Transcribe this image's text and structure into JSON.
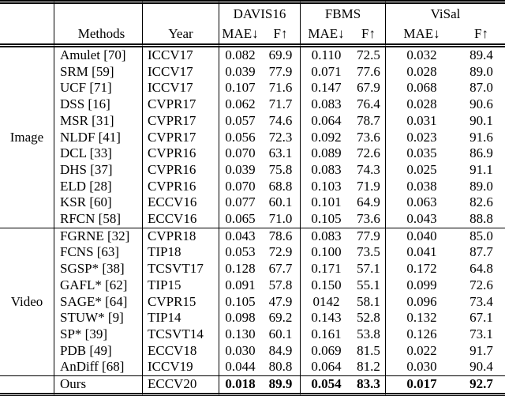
{
  "colors": {
    "background": "#ffffff",
    "text": "#000000",
    "rule": "#000000"
  },
  "table": {
    "datasets": [
      "DAVIS16",
      "FBMS",
      "ViSal"
    ],
    "header": {
      "methods": "Methods",
      "year": "Year",
      "mae": "MAE↓",
      "f": "F↑"
    },
    "sections": [
      {
        "group": "Image",
        "rule_above": false,
        "bold_values": false,
        "rows": [
          [
            "Amulet [70]",
            "ICCV17",
            "0.082",
            "69.9",
            "0.110",
            "72.5",
            "0.032",
            "89.4"
          ],
          [
            "SRM [59]",
            "ICCV17",
            "0.039",
            "77.9",
            "0.071",
            "77.6",
            "0.028",
            "89.0"
          ],
          [
            "UCF [71]",
            "ICCV17",
            "0.107",
            "71.6",
            "0.147",
            "67.9",
            "0.068",
            "87.0"
          ],
          [
            "DSS [16]",
            "CVPR17",
            "0.062",
            "71.7",
            "0.083",
            "76.4",
            "0.028",
            "90.6"
          ],
          [
            "MSR [31]",
            "CVPR17",
            "0.057",
            "74.6",
            "0.064",
            "78.7",
            "0.031",
            "90.1"
          ],
          [
            "NLDF [41]",
            "CVPR17",
            "0.056",
            "72.3",
            "0.092",
            "73.6",
            "0.023",
            "91.6"
          ],
          [
            "DCL [33]",
            "CVPR16",
            "0.070",
            "63.1",
            "0.089",
            "72.6",
            "0.035",
            "86.9"
          ],
          [
            "DHS [37]",
            "CVPR16",
            "0.039",
            "75.8",
            "0.083",
            "74.3",
            "0.025",
            "91.1"
          ],
          [
            "ELD [28]",
            "CVPR16",
            "0.070",
            "68.8",
            "0.103",
            "71.9",
            "0.038",
            "89.0"
          ],
          [
            "KSR [60]",
            "ECCV16",
            "0.077",
            "60.1",
            "0.101",
            "64.9",
            "0.063",
            "82.6"
          ],
          [
            "RFCN [58]",
            "ECCV16",
            "0.065",
            "71.0",
            "0.105",
            "73.6",
            "0.043",
            "88.8"
          ]
        ]
      },
      {
        "group": "Video",
        "rule_above": true,
        "bold_values": false,
        "rows": [
          [
            "FGRNE [32]",
            "CVPR18",
            "0.043",
            "78.6",
            "0.083",
            "77.9",
            "0.040",
            "85.0"
          ],
          [
            "FCNS [63]",
            "TIP18",
            "0.053",
            "72.9",
            "0.100",
            "73.5",
            "0.041",
            "87.7"
          ],
          [
            "SGSP* [38]",
            "TCSVT17",
            "0.128",
            "67.7",
            "0.171",
            "57.1",
            "0.172",
            "64.8"
          ],
          [
            "GAFL* [62]",
            "TIP15",
            "0.091",
            "57.8",
            "0.150",
            "55.1",
            "0.099",
            "72.6"
          ],
          [
            "SAGE* [64]",
            "CVPR15",
            "0.105",
            "47.9",
            "0142",
            "58.1",
            "0.096",
            "73.4"
          ],
          [
            "STUW* [9]",
            "TIP14",
            "0.098",
            "69.2",
            "0.143",
            "52.8",
            "0.132",
            "67.1"
          ],
          [
            "SP* [39]",
            "TCSVT14",
            "0.130",
            "60.1",
            "0.161",
            "53.8",
            "0.126",
            "73.1"
          ],
          [
            "PDB [49]",
            "ECCV18",
            "0.030",
            "84.9",
            "0.069",
            "81.5",
            "0.022",
            "91.7"
          ],
          [
            "AnDiff [68]",
            "ICCV19",
            "0.044",
            "80.8",
            "0.064",
            "81.2",
            "0.030",
            "90.4"
          ]
        ]
      },
      {
        "group": "",
        "rule_above": true,
        "bold_values": true,
        "rows": [
          [
            "Ours",
            "ECCV20",
            "0.018",
            "89.9",
            "0.054",
            "83.3",
            "0.017",
            "92.7"
          ]
        ]
      }
    ]
  }
}
